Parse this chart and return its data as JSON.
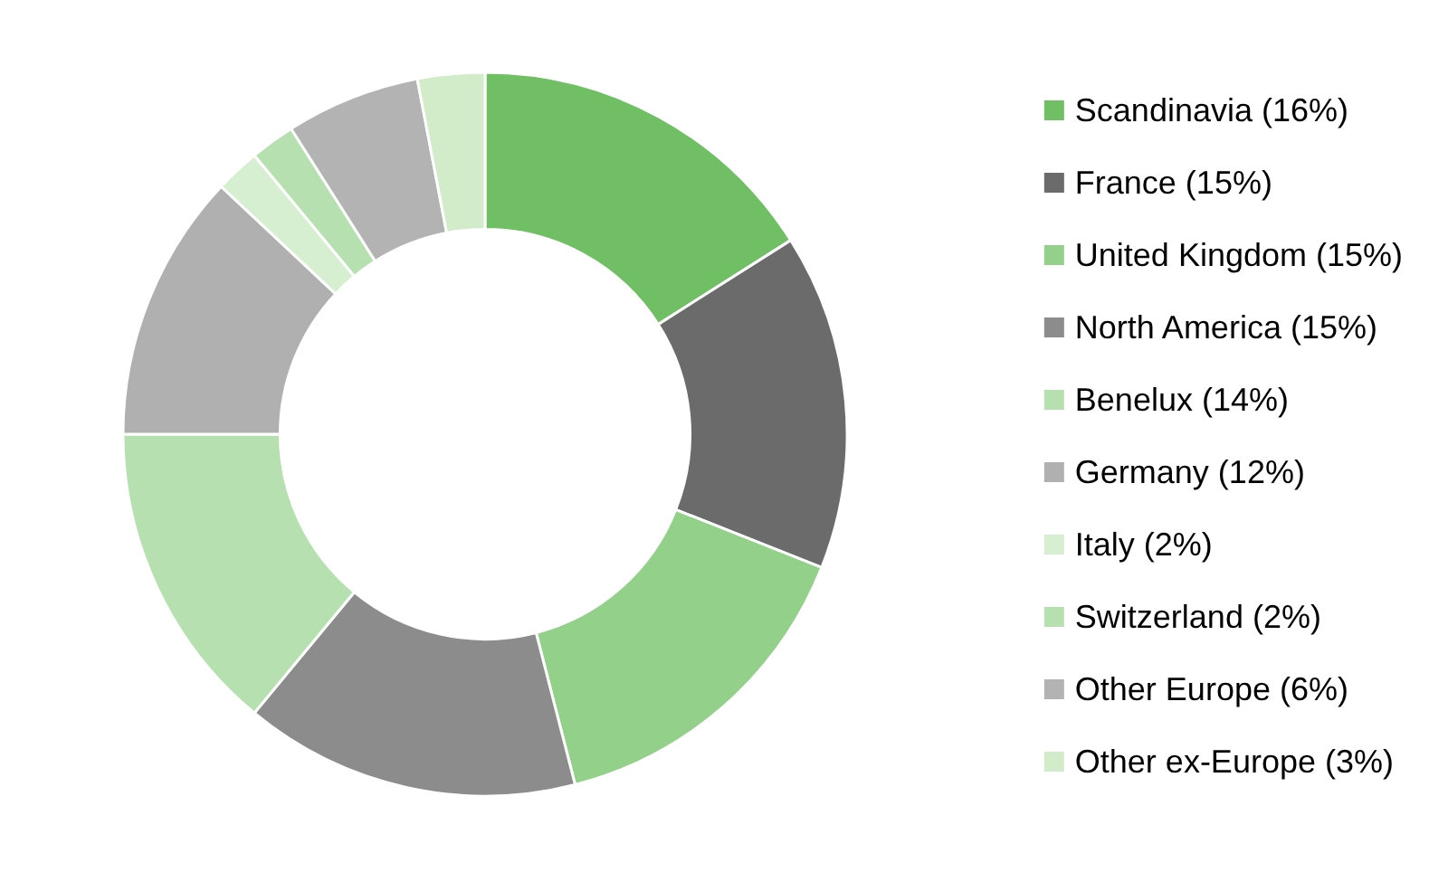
{
  "chart_data": {
    "type": "donut",
    "categories": [
      "Scandinavia (16%)",
      "France (15%)",
      "United Kingdom (15%)",
      "North America (15%)",
      "Benelux (14%)",
      "Germany (12%)",
      "Italy (2%)",
      "Switzerland (2%)",
      "Other Europe (6%)",
      "Other ex-Europe (3%)"
    ],
    "values": [
      16,
      15,
      15,
      15,
      14,
      12,
      2,
      2,
      6,
      3
    ],
    "colors": [
      "#70bf65",
      "#6b6b6b",
      "#93d18a",
      "#8c8c8c",
      "#b6e0af",
      "#b0b0b0",
      "#d6efd1",
      "#b6e0af",
      "#b3b3b3",
      "#d2ecca"
    ],
    "legend": "right"
  }
}
